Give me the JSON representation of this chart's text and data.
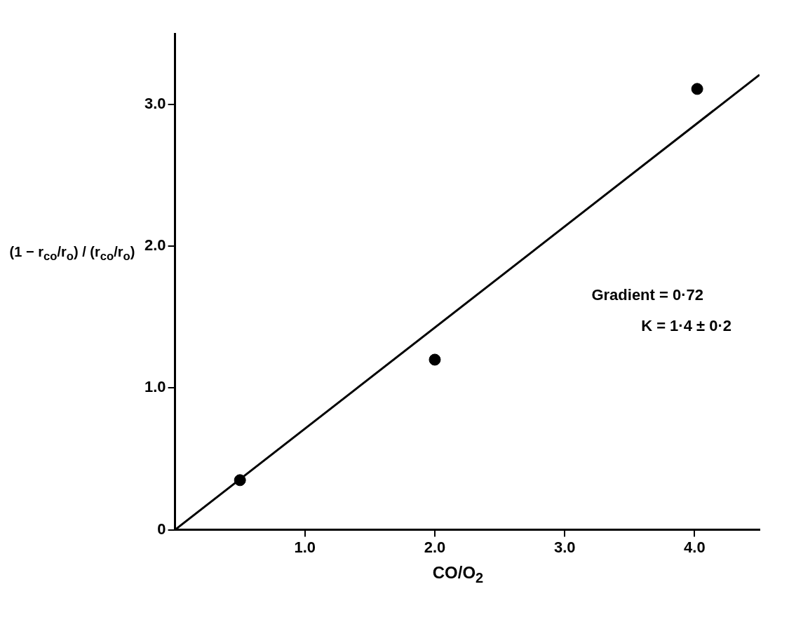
{
  "chart_data": {
    "type": "scatter",
    "xlabel": "CO/O$_{2}$",
    "ylabel": "(1 − r$_{co}$/r$_{o}$) / (r$_{co}$/r$_{o}$)",
    "x": [
      0.5,
      2.0,
      4.02
    ],
    "series": [
      {
        "type": "scatter",
        "color": "#000000",
        "marker": "circle",
        "values": [
          0.35,
          1.2,
          3.11
        ]
      },
      {
        "type": "line",
        "color": "#000000",
        "marker": "none",
        "line_style": "solid",
        "x": [
          0,
          4.5
        ],
        "values": [
          0,
          3.21
        ]
      }
    ],
    "xlim": [
      0,
      4.5
    ],
    "xticks": [
      {
        "value": 1,
        "label": "1.0"
      },
      {
        "value": 2,
        "label": "2.0"
      },
      {
        "value": 3,
        "label": "3.0"
      },
      {
        "value": 4,
        "label": "4.0"
      }
    ],
    "ylim": [
      0,
      3.5
    ],
    "yticks": [
      0,
      {
        "value": 1,
        "label": "1.0"
      },
      {
        "value": 2,
        "label": "2.0"
      },
      {
        "value": 3,
        "label": "3.0"
      }
    ],
    "annotations": [
      "Gradient = 0·72",
      "K = 1·4 ± 0·2"
    ],
    "grid": false,
    "legend": false
  }
}
